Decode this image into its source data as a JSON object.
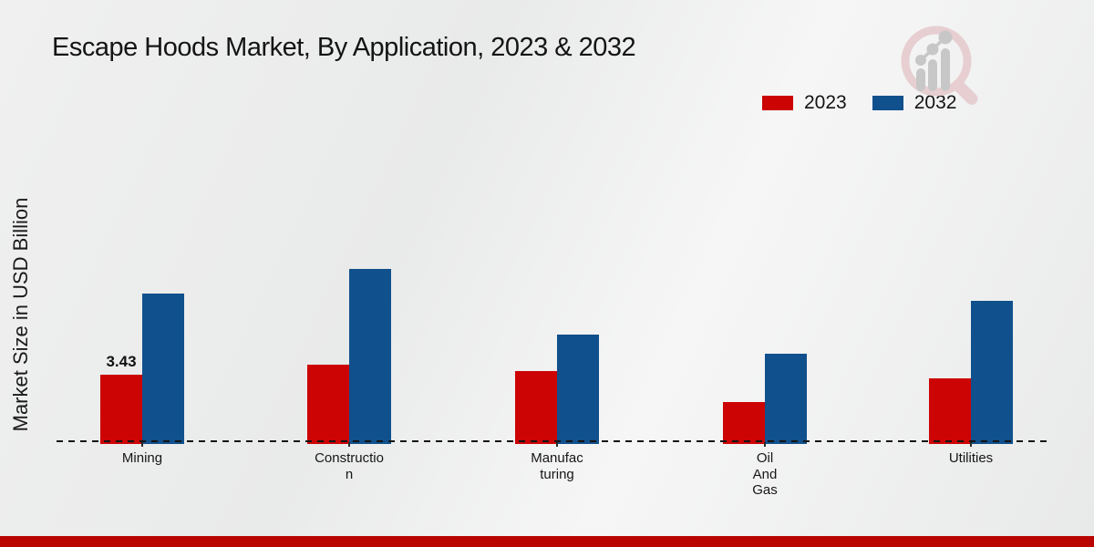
{
  "title": "Escape Hoods Market, By Application, 2023 & 2032",
  "y_axis_label": "Market Size in USD Billion",
  "legend": [
    {
      "label": "2023",
      "color": "#cc0404"
    },
    {
      "label": "2032",
      "color": "#10508c"
    }
  ],
  "colors": {
    "series_2023": "#cc0404",
    "series_2032": "#10508c",
    "bottom_stripe": "#b90400",
    "axis_line": "#141414",
    "logo_ring": "#e6ced1",
    "logo_bars": "#c7c7c7"
  },
  "logo": {
    "icon": "magnifier-bar-chart-logo"
  },
  "chart_data": {
    "type": "bar",
    "categories": [
      "Mining",
      "Construction",
      "Manufacturing",
      "Oil And Gas",
      "Utilities"
    ],
    "category_display_lines": [
      [
        "Mining"
      ],
      [
        "Constructio",
        "n"
      ],
      [
        "Manufac",
        "turing"
      ],
      [
        "Oil",
        "And",
        "Gas"
      ],
      [
        "Utilities"
      ]
    ],
    "series": [
      {
        "name": "2023",
        "color": "#cc0404",
        "values": [
          3.43,
          3.93,
          3.61,
          2.08,
          3.25
        ]
      },
      {
        "name": "2032",
        "color": "#10508c",
        "values": [
          7.45,
          8.66,
          5.42,
          4.47,
          7.08
        ]
      }
    ],
    "shown_data_label": {
      "category": "Mining",
      "series": "2023",
      "text": "3.43"
    },
    "title": "Escape Hoods Market, By Application, 2023 & 2032",
    "xlabel": "",
    "ylabel": "Market Size in USD Billion",
    "ylim": [
      0,
      9.5
    ],
    "grid": false,
    "legend_position": "top-right",
    "baseline_style": "dashed"
  }
}
